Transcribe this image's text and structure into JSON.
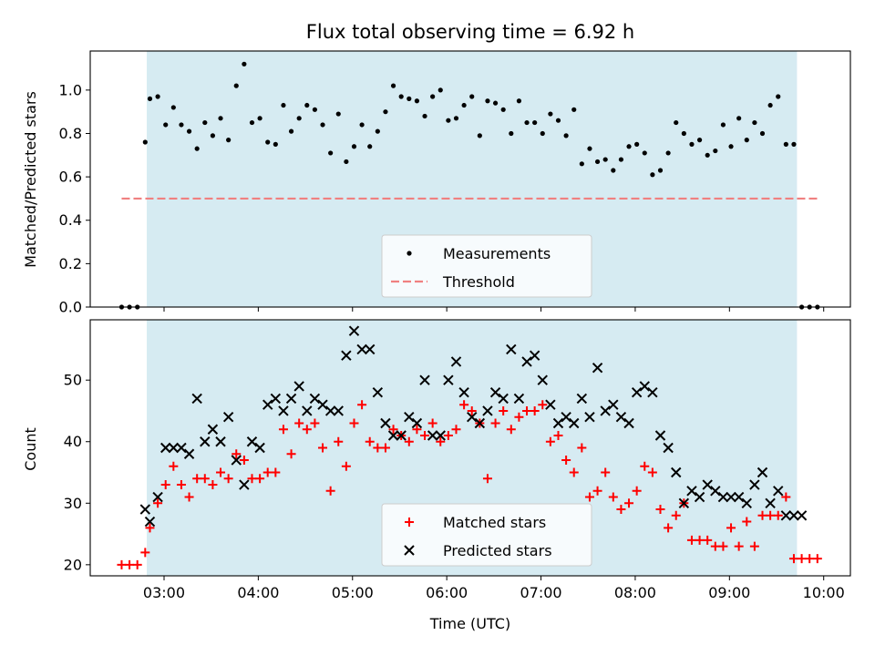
{
  "chart_data": [
    {
      "type": "scatter",
      "title": "Flux total observing time = 6.92 h",
      "ylabel": "Matched/Predicted stars",
      "xlabel": "",
      "xlim": [
        "02:13",
        "10:17"
      ],
      "ylim": [
        0,
        1.18
      ],
      "yticks": [
        0.0,
        0.2,
        0.4,
        0.6,
        0.8,
        1.0
      ],
      "ytick_labels": [
        "0.0",
        "0.2",
        "0.4",
        "0.6",
        "0.8",
        "1.0"
      ],
      "observing_window": [
        "02:49",
        "09:43"
      ],
      "window_color": "#add8e6",
      "legend": {
        "placement": "lower center",
        "entries": [
          "Measurements",
          "Threshold"
        ]
      },
      "threshold": {
        "name": "Threshold",
        "value": 0.5,
        "x": [
          "02:33",
          "09:57"
        ],
        "color": "#f08080",
        "style": "dashed"
      },
      "series": [
        {
          "name": "Measurements",
          "color": "#000000",
          "marker": "dot",
          "x": [
            "02:33",
            "02:38",
            "02:43",
            "02:48",
            "02:51",
            "02:56",
            "03:01",
            "03:06",
            "03:11",
            "03:16",
            "03:21",
            "03:26",
            "03:31",
            "03:36",
            "03:41",
            "03:46",
            "03:51",
            "03:56",
            "04:01",
            "04:06",
            "04:11",
            "04:16",
            "04:21",
            "04:26",
            "04:31",
            "04:36",
            "04:41",
            "04:46",
            "04:51",
            "04:56",
            "05:01",
            "05:06",
            "05:11",
            "05:16",
            "05:21",
            "05:26",
            "05:31",
            "05:36",
            "05:41",
            "05:46",
            "05:51",
            "05:56",
            "06:01",
            "06:06",
            "06:11",
            "06:16",
            "06:21",
            "06:26",
            "06:31",
            "06:36",
            "06:41",
            "06:46",
            "06:51",
            "06:56",
            "07:01",
            "07:06",
            "07:11",
            "07:16",
            "07:21",
            "07:26",
            "07:31",
            "07:36",
            "07:41",
            "07:46",
            "07:51",
            "07:56",
            "08:01",
            "08:06",
            "08:11",
            "08:16",
            "08:21",
            "08:26",
            "08:31",
            "08:36",
            "08:41",
            "08:46",
            "08:51",
            "08:56",
            "09:01",
            "09:06",
            "09:11",
            "09:16",
            "09:21",
            "09:26",
            "09:31",
            "09:36",
            "09:41",
            "09:46",
            "09:51",
            "09:56"
          ],
          "y": [
            0.0,
            0.0,
            0.0,
            0.76,
            0.96,
            0.97,
            0.84,
            0.92,
            0.84,
            0.81,
            0.73,
            0.85,
            0.79,
            0.87,
            0.77,
            1.02,
            1.12,
            0.85,
            0.87,
            0.76,
            0.75,
            0.93,
            0.81,
            0.87,
            0.93,
            0.91,
            0.84,
            0.71,
            0.89,
            0.67,
            0.74,
            0.84,
            0.74,
            0.81,
            0.9,
            1.02,
            0.97,
            0.96,
            0.95,
            0.88,
            0.97,
            1.0,
            0.86,
            0.87,
            0.93,
            0.97,
            0.79,
            0.95,
            0.94,
            0.91,
            0.8,
            0.95,
            0.85,
            0.85,
            0.8,
            0.89,
            0.86,
            0.79,
            0.91,
            0.66,
            0.73,
            0.67,
            0.68,
            0.63,
            0.68,
            0.74,
            0.75,
            0.71,
            0.61,
            0.63,
            0.71,
            0.85,
            0.8,
            0.75,
            0.77,
            0.7,
            0.72,
            0.84,
            0.74,
            0.87,
            0.77,
            0.85,
            0.8,
            0.93,
            0.97,
            0.75,
            0.75,
            0.0,
            0.0,
            0.0
          ]
        }
      ]
    },
    {
      "type": "scatter",
      "title": "",
      "ylabel": "Count",
      "xlabel": "Time (UTC)",
      "xlim": [
        "02:13",
        "10:17"
      ],
      "ylim": [
        18.2,
        59.8
      ],
      "yticks": [
        20,
        30,
        40,
        50
      ],
      "ytick_labels": [
        "20",
        "30",
        "40",
        "50"
      ],
      "xticks": [
        "03:00",
        "04:00",
        "05:00",
        "06:00",
        "07:00",
        "08:00",
        "09:00",
        "10:00"
      ],
      "xtick_labels": [
        "03:00",
        "04:00",
        "05:00",
        "06:00",
        "07:00",
        "08:00",
        "09:00",
        "10:00"
      ],
      "observing_window": [
        "02:49",
        "09:43"
      ],
      "window_color": "#add8e6",
      "legend": {
        "placement": "lower center",
        "entries": [
          "Matched stars",
          "Predicted stars"
        ]
      },
      "series": [
        {
          "name": "Matched stars",
          "color": "#ff0000",
          "marker": "plus",
          "x": [
            "02:33",
            "02:38",
            "02:43",
            "02:48",
            "02:51",
            "02:56",
            "03:01",
            "03:06",
            "03:11",
            "03:16",
            "03:21",
            "03:26",
            "03:31",
            "03:36",
            "03:41",
            "03:46",
            "03:51",
            "03:56",
            "04:01",
            "04:06",
            "04:11",
            "04:16",
            "04:21",
            "04:26",
            "04:31",
            "04:36",
            "04:41",
            "04:46",
            "04:51",
            "04:56",
            "05:01",
            "05:06",
            "05:11",
            "05:16",
            "05:21",
            "05:26",
            "05:31",
            "05:36",
            "05:41",
            "05:46",
            "05:51",
            "05:56",
            "06:01",
            "06:06",
            "06:11",
            "06:16",
            "06:21",
            "06:26",
            "06:31",
            "06:36",
            "06:41",
            "06:46",
            "06:51",
            "06:56",
            "07:01",
            "07:06",
            "07:11",
            "07:16",
            "07:21",
            "07:26",
            "07:31",
            "07:36",
            "07:41",
            "07:46",
            "07:51",
            "07:56",
            "08:01",
            "08:06",
            "08:11",
            "08:16",
            "08:21",
            "08:26",
            "08:31",
            "08:36",
            "08:41",
            "08:46",
            "08:51",
            "08:56",
            "09:01",
            "09:06",
            "09:11",
            "09:16",
            "09:21",
            "09:26",
            "09:31",
            "09:36",
            "09:41",
            "09:46",
            "09:51",
            "09:56"
          ],
          "y": [
            20,
            20,
            20,
            22,
            26,
            30,
            33,
            36,
            33,
            31,
            34,
            34,
            33,
            35,
            34,
            38,
            37,
            34,
            34,
            35,
            35,
            42,
            38,
            43,
            42,
            43,
            39,
            32,
            40,
            36,
            43,
            46,
            40,
            39,
            39,
            42,
            41,
            40,
            42,
            41,
            43,
            40,
            41,
            42,
            46,
            45,
            43,
            34,
            43,
            45,
            42,
            44,
            45,
            45,
            46,
            40,
            41,
            37,
            35,
            39,
            31,
            32,
            35,
            31,
            29,
            30,
            32,
            36,
            35,
            29,
            26,
            28,
            30,
            24,
            24,
            24,
            23,
            23,
            26,
            23,
            27,
            23,
            28,
            28,
            28,
            31,
            21,
            21,
            21,
            21
          ]
        },
        {
          "name": "Predicted stars",
          "color": "#000000",
          "marker": "x",
          "x": [
            "02:48",
            "02:51",
            "02:56",
            "03:01",
            "03:06",
            "03:11",
            "03:16",
            "03:21",
            "03:26",
            "03:31",
            "03:36",
            "03:41",
            "03:46",
            "03:51",
            "03:56",
            "04:01",
            "04:06",
            "04:11",
            "04:16",
            "04:21",
            "04:26",
            "04:31",
            "04:36",
            "04:41",
            "04:46",
            "04:51",
            "04:56",
            "05:01",
            "05:06",
            "05:11",
            "05:16",
            "05:21",
            "05:26",
            "05:31",
            "05:36",
            "05:41",
            "05:46",
            "05:51",
            "05:56",
            "06:01",
            "06:06",
            "06:11",
            "06:16",
            "06:21",
            "06:26",
            "06:31",
            "06:36",
            "06:41",
            "06:46",
            "06:51",
            "06:56",
            "07:01",
            "07:06",
            "07:11",
            "07:16",
            "07:21",
            "07:26",
            "07:31",
            "07:36",
            "07:41",
            "07:46",
            "07:51",
            "07:56",
            "08:01",
            "08:06",
            "08:11",
            "08:16",
            "08:21",
            "08:26",
            "08:31",
            "08:36",
            "08:41",
            "08:46",
            "08:51",
            "08:56",
            "09:01",
            "09:06",
            "09:11",
            "09:16",
            "09:21",
            "09:26",
            "09:31",
            "09:36",
            "09:41",
            "09:46"
          ],
          "y": [
            29,
            27,
            31,
            39,
            39,
            39,
            38,
            47,
            40,
            42,
            40,
            44,
            37,
            33,
            40,
            39,
            46,
            47,
            45,
            47,
            49,
            45,
            47,
            46,
            45,
            45,
            54,
            58,
            55,
            55,
            48,
            43,
            41,
            41,
            44,
            43,
            50,
            41,
            41,
            50,
            53,
            48,
            44,
            43,
            45,
            48,
            47,
            55,
            47,
            53,
            54,
            50,
            46,
            43,
            44,
            43,
            47,
            44,
            52,
            45,
            46,
            44,
            43,
            48,
            49,
            48,
            41,
            39,
            35,
            30,
            32,
            31,
            33,
            32,
            31,
            31,
            31,
            30,
            33,
            35,
            30,
            32,
            28,
            28,
            28
          ]
        }
      ]
    }
  ]
}
